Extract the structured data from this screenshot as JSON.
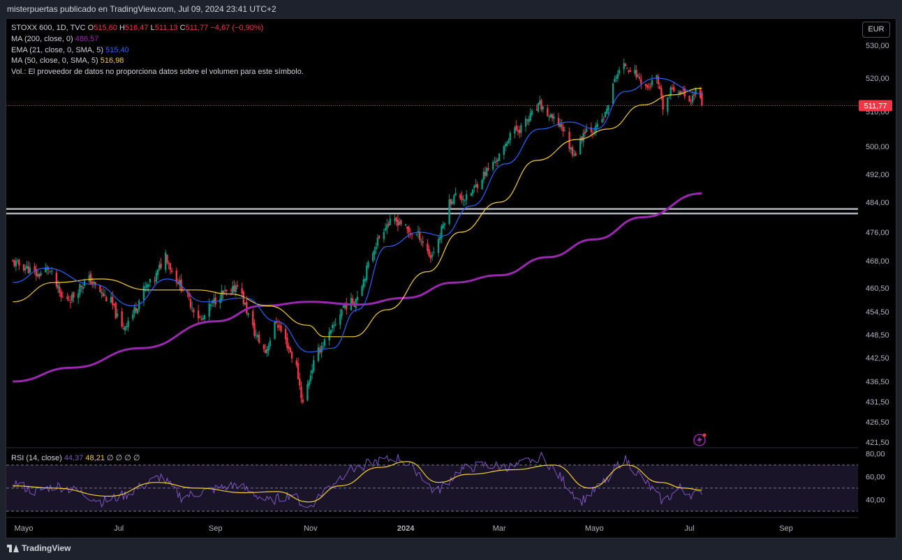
{
  "header": {
    "text": "misterpuertas publicado en TradingView.com, Jul 09, 2024 23:41 UTC+2"
  },
  "legend": {
    "symbol": "STOXX 600, 1D, TVC",
    "ohlc": {
      "o_label": "O",
      "o": "515,60",
      "h_label": "H",
      "h": "516,47",
      "l_label": "L",
      "l": "511,13",
      "c_label": "C",
      "c": "511,77",
      "change": "−4,67 (−0,90%)"
    },
    "ma200": {
      "label": "MA (200, close, 0)",
      "value": "486,57"
    },
    "ema21": {
      "label": "EMA (21, close, 0, SMA, 5)",
      "value": "515,40"
    },
    "ma50": {
      "label": "MA (50, close, 0, SMA, 5)",
      "value": "516,98"
    },
    "vol": {
      "label": "Vol.:",
      "text": "El proveedor de datos no proporciona datos sobre el volumen para este símbolo."
    }
  },
  "rsi_legend": {
    "label": "RSI (14, close)",
    "value": "44,37",
    "ma_value": "48,21",
    "extra": "∅ ∅ ∅ ∅"
  },
  "currency_button": "EUR",
  "last_price_label": "511,77",
  "footer": {
    "brand": "TradingView"
  },
  "colors": {
    "up": "#089981",
    "down": "#f23645",
    "ma200": "#9c27b0",
    "ema21": "#2962ff",
    "ma50": "#f7d230",
    "rsi": "#7e57c2",
    "rsi_ma": "#f7d230",
    "hline": "#b2b5be"
  },
  "chart_data": [
    {
      "type": "candlestick",
      "title": "STOXX 600, 1D, TVC",
      "y_ticks": [
        "530,00",
        "520,00",
        "510,00",
        "500,00",
        "492,00",
        "484,00",
        "476,00",
        "468,00",
        "460,50",
        "454,50",
        "448,50",
        "442,50",
        "436,50",
        "431,50",
        "426,50",
        "421,50"
      ],
      "y_tick_values": [
        530,
        520,
        510,
        500,
        492,
        484,
        476,
        468,
        460.5,
        454.5,
        448.5,
        442.5,
        436.5,
        431.5,
        426.5,
        421.5
      ],
      "x_ticks": [
        "Mayo",
        "Jul",
        "Sep",
        "Nov",
        "2024",
        "Mar",
        "Mayo",
        "Jul",
        "Sep"
      ],
      "x_tick_dates": [
        "2023-05-01",
        "2023-07-01",
        "2023-09-01",
        "2023-11-01",
        "2024-01-01",
        "2024-03-01",
        "2024-05-01",
        "2024-07-01",
        "2024-09-01"
      ],
      "horizontal_lines": [
        482.2,
        481.0
      ],
      "last_close": 511.77,
      "anchors": [
        {
          "date": "2023-04-24",
          "close": 467.5
        },
        {
          "date": "2023-05-03",
          "close": 466
        },
        {
          "date": "2023-05-10",
          "close": 464
        },
        {
          "date": "2023-05-17",
          "close": 466
        },
        {
          "date": "2023-05-25",
          "close": 458
        },
        {
          "date": "2023-06-01",
          "close": 458
        },
        {
          "date": "2023-06-06",
          "close": 461
        },
        {
          "date": "2023-06-12",
          "close": 463
        },
        {
          "date": "2023-06-20",
          "close": 459
        },
        {
          "date": "2023-06-26",
          "close": 457
        },
        {
          "date": "2023-07-03",
          "close": 450
        },
        {
          "date": "2023-07-10",
          "close": 454
        },
        {
          "date": "2023-07-17",
          "close": 460
        },
        {
          "date": "2023-07-24",
          "close": 463
        },
        {
          "date": "2023-07-31",
          "close": 470
        },
        {
          "date": "2023-08-04",
          "close": 465
        },
        {
          "date": "2023-08-10",
          "close": 461
        },
        {
          "date": "2023-08-17",
          "close": 456
        },
        {
          "date": "2023-08-23",
          "close": 452
        },
        {
          "date": "2023-08-29",
          "close": 456
        },
        {
          "date": "2023-09-04",
          "close": 459
        },
        {
          "date": "2023-09-11",
          "close": 459
        },
        {
          "date": "2023-09-15",
          "close": 462
        },
        {
          "date": "2023-09-20",
          "close": 456
        },
        {
          "date": "2023-09-26",
          "close": 449
        },
        {
          "date": "2023-10-03",
          "close": 444
        },
        {
          "date": "2023-10-10",
          "close": 452
        },
        {
          "date": "2023-10-17",
          "close": 446
        },
        {
          "date": "2023-10-23",
          "close": 440
        },
        {
          "date": "2023-10-27",
          "close": 431
        },
        {
          "date": "2023-11-02",
          "close": 440
        },
        {
          "date": "2023-11-07",
          "close": 445
        },
        {
          "date": "2023-11-14",
          "close": 449
        },
        {
          "date": "2023-11-22",
          "close": 456
        },
        {
          "date": "2023-11-29",
          "close": 457
        },
        {
          "date": "2023-12-05",
          "close": 463
        },
        {
          "date": "2023-12-12",
          "close": 472
        },
        {
          "date": "2023-12-19",
          "close": 478
        },
        {
          "date": "2023-12-28",
          "close": 479
        },
        {
          "date": "2024-01-03",
          "close": 476
        },
        {
          "date": "2024-01-10",
          "close": 475
        },
        {
          "date": "2024-01-17",
          "close": 469
        },
        {
          "date": "2024-01-23",
          "close": 475
        },
        {
          "date": "2024-01-29",
          "close": 484
        },
        {
          "date": "2024-02-02",
          "close": 486
        },
        {
          "date": "2024-02-09",
          "close": 485
        },
        {
          "date": "2024-02-14",
          "close": 488
        },
        {
          "date": "2024-02-20",
          "close": 492
        },
        {
          "date": "2024-02-26",
          "close": 495
        },
        {
          "date": "2024-03-04",
          "close": 499
        },
        {
          "date": "2024-03-08",
          "close": 504
        },
        {
          "date": "2024-03-14",
          "close": 505
        },
        {
          "date": "2024-03-20",
          "close": 508
        },
        {
          "date": "2024-03-27",
          "close": 512
        },
        {
          "date": "2024-04-03",
          "close": 508
        },
        {
          "date": "2024-04-10",
          "close": 506
        },
        {
          "date": "2024-04-16",
          "close": 499
        },
        {
          "date": "2024-04-19",
          "close": 498
        },
        {
          "date": "2024-04-25",
          "close": 505
        },
        {
          "date": "2024-05-02",
          "close": 505
        },
        {
          "date": "2024-05-08",
          "close": 509
        },
        {
          "date": "2024-05-15",
          "close": 521
        },
        {
          "date": "2024-05-21",
          "close": 524
        },
        {
          "date": "2024-05-28",
          "close": 521
        },
        {
          "date": "2024-06-04",
          "close": 517
        },
        {
          "date": "2024-06-10",
          "close": 520
        },
        {
          "date": "2024-06-14",
          "close": 511
        },
        {
          "date": "2024-06-20",
          "close": 517
        },
        {
          "date": "2024-06-26",
          "close": 516
        },
        {
          "date": "2024-07-02",
          "close": 513
        },
        {
          "date": "2024-07-05",
          "close": 517
        },
        {
          "date": "2024-07-09",
          "close": 511.77
        }
      ],
      "ema21_points": [
        {
          "date": "2023-04-24",
          "value": 462
        },
        {
          "date": "2023-05-15",
          "value": 466
        },
        {
          "date": "2023-06-15",
          "value": 461.5
        },
        {
          "date": "2023-07-10",
          "value": 456
        },
        {
          "date": "2023-08-01",
          "value": 463
        },
        {
          "date": "2023-08-25",
          "value": 457
        },
        {
          "date": "2023-09-20",
          "value": 458
        },
        {
          "date": "2023-10-10",
          "value": 452
        },
        {
          "date": "2023-10-31",
          "value": 444
        },
        {
          "date": "2023-11-15",
          "value": 445
        },
        {
          "date": "2023-12-01",
          "value": 455
        },
        {
          "date": "2023-12-20",
          "value": 472
        },
        {
          "date": "2024-01-10",
          "value": 476
        },
        {
          "date": "2024-01-25",
          "value": 475
        },
        {
          "date": "2024-02-12",
          "value": 483
        },
        {
          "date": "2024-03-05",
          "value": 495
        },
        {
          "date": "2024-03-27",
          "value": 505
        },
        {
          "date": "2024-04-15",
          "value": 507
        },
        {
          "date": "2024-05-02",
          "value": 505
        },
        {
          "date": "2024-05-21",
          "value": 516
        },
        {
          "date": "2024-06-10",
          "value": 520
        },
        {
          "date": "2024-07-09",
          "value": 515.4
        }
      ],
      "ma50_points": [
        {
          "date": "2023-04-24",
          "value": 457
        },
        {
          "date": "2023-05-20",
          "value": 462
        },
        {
          "date": "2023-06-20",
          "value": 463
        },
        {
          "date": "2023-07-20",
          "value": 460
        },
        {
          "date": "2023-08-20",
          "value": 460
        },
        {
          "date": "2023-09-10",
          "value": 459
        },
        {
          "date": "2023-10-05",
          "value": 456
        },
        {
          "date": "2023-10-30",
          "value": 451
        },
        {
          "date": "2023-11-10",
          "value": 448
        },
        {
          "date": "2023-11-28",
          "value": 448
        },
        {
          "date": "2023-12-20",
          "value": 455
        },
        {
          "date": "2024-01-15",
          "value": 465
        },
        {
          "date": "2024-02-05",
          "value": 476
        },
        {
          "date": "2024-03-01",
          "value": 484
        },
        {
          "date": "2024-03-25",
          "value": 496
        },
        {
          "date": "2024-04-20",
          "value": 502
        },
        {
          "date": "2024-05-10",
          "value": 505
        },
        {
          "date": "2024-06-01",
          "value": 512
        },
        {
          "date": "2024-06-20",
          "value": 515
        },
        {
          "date": "2024-07-09",
          "value": 516.98
        }
      ],
      "ma200_points": [
        {
          "date": "2023-04-24",
          "value": 436.5
        },
        {
          "date": "2023-06-01",
          "value": 440
        },
        {
          "date": "2023-07-15",
          "value": 445
        },
        {
          "date": "2023-09-01",
          "value": 452
        },
        {
          "date": "2023-10-01",
          "value": 456
        },
        {
          "date": "2023-11-01",
          "value": 457
        },
        {
          "date": "2023-12-01",
          "value": 456.3
        },
        {
          "date": "2024-01-01",
          "value": 458
        },
        {
          "date": "2024-02-01",
          "value": 462
        },
        {
          "date": "2024-03-01",
          "value": 464
        },
        {
          "date": "2024-04-01",
          "value": 469
        },
        {
          "date": "2024-05-01",
          "value": 474
        },
        {
          "date": "2024-06-01",
          "value": 480
        },
        {
          "date": "2024-07-09",
          "value": 486.57
        }
      ]
    },
    {
      "type": "line",
      "title": "RSI (14, close)",
      "y_ticks": [
        "80,00",
        "60,00",
        "40,00"
      ],
      "y_tick_values": [
        80,
        60,
        40
      ],
      "bands": [
        70,
        50,
        30
      ],
      "rsi_anchors": [
        {
          "date": "2023-04-24",
          "value": 55
        },
        {
          "date": "2023-05-08",
          "value": 47
        },
        {
          "date": "2023-05-22",
          "value": 52
        },
        {
          "date": "2023-06-05",
          "value": 47
        },
        {
          "date": "2023-06-20",
          "value": 38
        },
        {
          "date": "2023-07-05",
          "value": 44
        },
        {
          "date": "2023-07-28",
          "value": 60
        },
        {
          "date": "2023-08-10",
          "value": 42
        },
        {
          "date": "2023-08-25",
          "value": 47
        },
        {
          "date": "2023-09-15",
          "value": 53
        },
        {
          "date": "2023-10-05",
          "value": 38
        },
        {
          "date": "2023-10-20",
          "value": 45
        },
        {
          "date": "2023-10-30",
          "value": 32
        },
        {
          "date": "2023-11-10",
          "value": 48
        },
        {
          "date": "2023-11-25",
          "value": 65
        },
        {
          "date": "2023-12-10",
          "value": 72
        },
        {
          "date": "2023-12-28",
          "value": 76
        },
        {
          "date": "2024-01-10",
          "value": 63
        },
        {
          "date": "2024-01-20",
          "value": 45
        },
        {
          "date": "2024-02-05",
          "value": 66
        },
        {
          "date": "2024-02-20",
          "value": 70
        },
        {
          "date": "2024-03-10",
          "value": 68
        },
        {
          "date": "2024-03-28",
          "value": 78
        },
        {
          "date": "2024-04-12",
          "value": 55
        },
        {
          "date": "2024-04-22",
          "value": 38
        },
        {
          "date": "2024-05-05",
          "value": 52
        },
        {
          "date": "2024-05-20",
          "value": 76
        },
        {
          "date": "2024-06-03",
          "value": 55
        },
        {
          "date": "2024-06-14",
          "value": 38
        },
        {
          "date": "2024-06-25",
          "value": 50
        },
        {
          "date": "2024-07-03",
          "value": 44
        },
        {
          "date": "2024-07-09",
          "value": 44.37
        }
      ],
      "rsi_ma_anchors": [
        {
          "date": "2023-04-24",
          "value": 52
        },
        {
          "date": "2023-05-20",
          "value": 50
        },
        {
          "date": "2023-06-25",
          "value": 43
        },
        {
          "date": "2023-07-25",
          "value": 55
        },
        {
          "date": "2023-08-20",
          "value": 50
        },
        {
          "date": "2023-09-20",
          "value": 46
        },
        {
          "date": "2023-10-10",
          "value": 47
        },
        {
          "date": "2023-10-31",
          "value": 38
        },
        {
          "date": "2023-11-20",
          "value": 52
        },
        {
          "date": "2023-12-15",
          "value": 68
        },
        {
          "date": "2024-01-02",
          "value": 73
        },
        {
          "date": "2024-01-22",
          "value": 55
        },
        {
          "date": "2024-02-10",
          "value": 62
        },
        {
          "date": "2024-03-10",
          "value": 66
        },
        {
          "date": "2024-04-05",
          "value": 70
        },
        {
          "date": "2024-04-28",
          "value": 50
        },
        {
          "date": "2024-05-22",
          "value": 70
        },
        {
          "date": "2024-06-12",
          "value": 55
        },
        {
          "date": "2024-06-28",
          "value": 50
        },
        {
          "date": "2024-07-09",
          "value": 48.21
        }
      ]
    }
  ]
}
